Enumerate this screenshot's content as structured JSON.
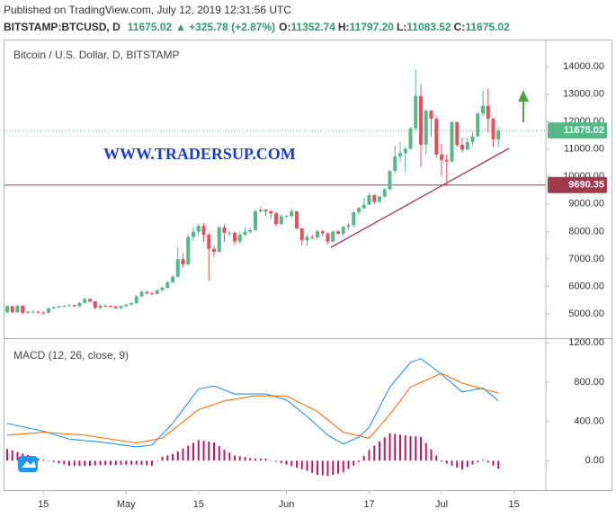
{
  "header": {
    "published": "Published on TradingView.com, July 12, 2019 12:31:56 UTC",
    "symbol": "BITSTAMP:BTCUSD, D",
    "last": "11675.02",
    "arrow": "▲",
    "change": "+325.78 (+2.87%)",
    "open_label": "O:",
    "open": "11352.74",
    "high_label": "H:",
    "high": "11797.20",
    "low_label": "L:",
    "low": "11083.52",
    "close_label": "C:",
    "close": "11675.02"
  },
  "chart_data": {
    "type": "candlestick",
    "title": "Bitcoin / U.S. Dollar, D, BITSTAMP",
    "watermark": "WWW.TRADERSUP.COM",
    "up_color": "#53b987",
    "down_color": "#eb4d5c",
    "categories": [
      null,
      null,
      null,
      null,
      null,
      null,
      null,
      "15",
      null,
      null,
      null,
      null,
      null,
      null,
      null,
      null,
      null,
      null,
      null,
      null,
      null,
      null,
      null,
      "May",
      null,
      null,
      null,
      null,
      null,
      null,
      null,
      null,
      null,
      null,
      null,
      null,
      null,
      "15",
      null,
      null,
      null,
      null,
      null,
      null,
      null,
      null,
      null,
      null,
      null,
      null,
      null,
      null,
      null,
      null,
      "Jun",
      null,
      null,
      null,
      null,
      null,
      null,
      null,
      null,
      null,
      null,
      null,
      null,
      null,
      null,
      null,
      "17",
      null,
      null,
      null,
      null,
      null,
      null,
      null,
      null,
      null,
      null,
      null,
      null,
      null,
      "Jul",
      null,
      null,
      null,
      null,
      null,
      null,
      null,
      null,
      null,
      null,
      null,
      null,
      null,
      "15"
    ],
    "candles": [
      [
        5050,
        5330,
        5020,
        5280
      ],
      [
        5280,
        5290,
        5020,
        5060
      ],
      [
        5060,
        5330,
        5040,
        5300
      ],
      [
        5300,
        5310,
        4980,
        5040
      ],
      [
        5040,
        5110,
        5010,
        5070
      ],
      [
        5070,
        5120,
        5040,
        5080
      ],
      [
        5080,
        5110,
        5020,
        5050
      ],
      [
        5050,
        5090,
        4990,
        5040
      ],
      [
        5040,
        5230,
        5020,
        5200
      ],
      [
        5200,
        5280,
        5180,
        5240
      ],
      [
        5240,
        5310,
        5210,
        5280
      ],
      [
        5280,
        5330,
        5250,
        5290
      ],
      [
        5290,
        5350,
        5260,
        5320
      ],
      [
        5320,
        5340,
        5240,
        5280
      ],
      [
        5280,
        5440,
        5260,
        5400
      ],
      [
        5400,
        5600,
        5380,
        5540
      ],
      [
        5540,
        5560,
        5400,
        5460
      ],
      [
        5460,
        5470,
        5150,
        5220
      ],
      [
        5220,
        5340,
        5180,
        5300
      ],
      [
        5300,
        5330,
        5260,
        5290
      ],
      [
        5290,
        5310,
        5230,
        5270
      ],
      [
        5270,
        5290,
        5170,
        5210
      ],
      [
        5210,
        5310,
        5180,
        5280
      ],
      [
        5280,
        5370,
        5260,
        5340
      ],
      [
        5340,
        5420,
        5320,
        5390
      ],
      [
        5390,
        5680,
        5370,
        5640
      ],
      [
        5640,
        5860,
        5610,
        5800
      ],
      [
        5800,
        5840,
        5700,
        5750
      ],
      [
        5750,
        5790,
        5680,
        5730
      ],
      [
        5730,
        5890,
        5700,
        5860
      ],
      [
        5860,
        5990,
        5830,
        5950
      ],
      [
        5950,
        6190,
        5920,
        6150
      ],
      [
        6150,
        6430,
        6120,
        6350
      ],
      [
        6350,
        7420,
        6330,
        6990
      ],
      [
        6990,
        7220,
        6680,
        6800
      ],
      [
        6800,
        7900,
        6780,
        7800
      ],
      [
        7800,
        8160,
        7650,
        7990
      ],
      [
        7990,
        8280,
        7830,
        8200
      ],
      [
        8200,
        8300,
        7620,
        7880
      ],
      [
        7880,
        7950,
        6200,
        7360
      ],
      [
        7360,
        7480,
        7070,
        7260
      ],
      [
        7260,
        8200,
        7250,
        8150
      ],
      [
        8150,
        8260,
        7620,
        7950
      ],
      [
        7950,
        8040,
        7820,
        7950
      ],
      [
        7950,
        8000,
        7500,
        7630
      ],
      [
        7630,
        7980,
        7540,
        7880
      ],
      [
        7880,
        8150,
        7830,
        7990
      ],
      [
        7990,
        8120,
        7930,
        8050
      ],
      [
        8050,
        8800,
        8030,
        8730
      ],
      [
        8730,
        8910,
        8680,
        8800
      ],
      [
        8800,
        8820,
        8570,
        8740
      ],
      [
        8740,
        8770,
        8450,
        8660
      ],
      [
        8660,
        8720,
        8170,
        8270
      ],
      [
        8270,
        8620,
        8240,
        8550
      ],
      [
        8550,
        8600,
        8500,
        8560
      ],
      [
        8560,
        8840,
        8480,
        8730
      ],
      [
        8730,
        8750,
        8060,
        8110
      ],
      [
        8110,
        8120,
        7490,
        7680
      ],
      [
        7680,
        7880,
        7480,
        7800
      ],
      [
        7800,
        7880,
        7720,
        7780
      ],
      [
        7780,
        8070,
        7700,
        8000
      ],
      [
        8000,
        8060,
        7840,
        7930
      ],
      [
        7930,
        7960,
        7540,
        7630
      ],
      [
        7630,
        8040,
        7600,
        8000
      ],
      [
        8000,
        8070,
        7880,
        7920
      ],
      [
        7920,
        8190,
        7810,
        8170
      ],
      [
        8170,
        8310,
        8050,
        8230
      ],
      [
        8230,
        8750,
        8140,
        8700
      ],
      [
        8700,
        8890,
        8620,
        8850
      ],
      [
        8850,
        9220,
        8800,
        8970
      ],
      [
        8970,
        9390,
        8970,
        9320
      ],
      [
        9320,
        9350,
        8990,
        9080
      ],
      [
        9080,
        9310,
        9030,
        9270
      ],
      [
        9270,
        9580,
        9220,
        9530
      ],
      [
        9530,
        10230,
        9510,
        10200
      ],
      [
        10200,
        11120,
        10100,
        10730
      ],
      [
        10730,
        11250,
        10530,
        10850
      ],
      [
        10850,
        11080,
        10160,
        11010
      ],
      [
        11010,
        11790,
        10980,
        11750
      ],
      [
        11750,
        13900,
        11680,
        12930
      ],
      [
        12930,
        13360,
        10350,
        11160
      ],
      [
        11160,
        12440,
        10800,
        12400
      ],
      [
        12400,
        12400,
        11460,
        12100
      ],
      [
        12100,
        12180,
        10700,
        10800
      ],
      [
        10800,
        11200,
        10000,
        10600
      ],
      [
        10600,
        10810,
        9650,
        10550
      ],
      [
        10550,
        12000,
        10520,
        11980
      ],
      [
        11980,
        12000,
        11080,
        11150
      ],
      [
        11150,
        11400,
        10870,
        10980
      ],
      [
        10980,
        11420,
        10960,
        11250
      ],
      [
        11250,
        11630,
        11140,
        11460
      ],
      [
        11460,
        12340,
        11440,
        12290
      ],
      [
        12290,
        13130,
        12180,
        12570
      ],
      [
        12570,
        13200,
        11600,
        12100
      ],
      [
        12100,
        12150,
        11070,
        11350
      ],
      [
        11350,
        11797.2,
        11083.52,
        11675
      ],
      null,
      null,
      null
    ],
    "ylim": [
      4150,
      14950
    ],
    "yticks": [
      {
        "value": 5000,
        "label": "5000.00"
      },
      {
        "value": 6000,
        "label": "6000.00"
      },
      {
        "value": 7000,
        "label": "7000.00"
      },
      {
        "value": 8000,
        "label": "8000.00"
      },
      {
        "value": 9000,
        "label": "9000.00"
      },
      {
        "value": 10000,
        "label": "10000.00"
      },
      {
        "value": 11000,
        "label": "11000.00"
      },
      {
        "value": 12000,
        "label": "12000.00"
      },
      {
        "value": 13000,
        "label": "13000.00"
      },
      {
        "value": 14000,
        "label": "14000.00"
      }
    ],
    "last_price": 11675.02,
    "horizontal_line": 9690.35,
    "horizontal_line_color": "#a0394a",
    "macd": {
      "title": "MACD (12, 26, close, 9)",
      "ylim": [
        -300,
        1230
      ],
      "yticks": [
        {
          "value": 0,
          "label": "0.00"
        },
        {
          "value": 400,
          "label": "400.00"
        },
        {
          "value": 800,
          "label": "800.00"
        },
        {
          "value": 1200,
          "label": "1200.00"
        }
      ],
      "series": [
        {
          "name": "MACD",
          "color": "#2196f3",
          "values": [
            380,
            369,
            357,
            346,
            334,
            323,
            311,
            300,
            284,
            268,
            252,
            236,
            220,
            215,
            210,
            205,
            200,
            195,
            190,
            183,
            176,
            169,
            162,
            155,
            148,
            140,
            147,
            153,
            160,
            215,
            270,
            325,
            380,
            450,
            520,
            590,
            660,
            730,
            740,
            750,
            760,
            740,
            720,
            700,
            680,
            680,
            680,
            680,
            680,
            680,
            680,
            665,
            650,
            635,
            620,
            578,
            535,
            493,
            450,
            403,
            355,
            308,
            260,
            230,
            200,
            170,
            193,
            217,
            240,
            290,
            340,
            443,
            545,
            648,
            750,
            813,
            875,
            938,
            1000,
            1020,
            1040,
            1000,
            960,
            920,
            880,
            835,
            790,
            745,
            700,
            710,
            720,
            730,
            740,
            697,
            653,
            610,
            null,
            null,
            null
          ]
        },
        {
          "name": "Signal",
          "color": "#ff6d00",
          "values": [
            260,
            264,
            269,
            273,
            277,
            281,
            286,
            290,
            286,
            283,
            279,
            275,
            271,
            268,
            264,
            260,
            252,
            244,
            236,
            228,
            220,
            212,
            204,
            196,
            188,
            180,
            190,
            200,
            210,
            220,
            230,
            271,
            313,
            354,
            396,
            437,
            479,
            520,
            538,
            556,
            574,
            592,
            610,
            618,
            627,
            635,
            643,
            652,
            660,
            660,
            660,
            660,
            660,
            660,
            660,
            633,
            607,
            580,
            553,
            527,
            500,
            458,
            416,
            374,
            332,
            290,
            278,
            266,
            254,
            242,
            230,
            290,
            350,
            410,
            470,
            540,
            610,
            680,
            750,
            773,
            797,
            820,
            843,
            867,
            890,
            865,
            840,
            815,
            790,
            775,
            760,
            745,
            730,
            717,
            703,
            690,
            null,
            null,
            null
          ]
        },
        {
          "name": "Histogram",
          "color": "#c2185b",
          "values": [
            120,
            105,
            88,
            73,
            57,
            42,
            25,
            10,
            -2,
            -15,
            -27,
            -39,
            -51,
            -53,
            -54,
            -55,
            -52,
            -49,
            -46,
            -45,
            -44,
            -43,
            -42,
            -41,
            -40,
            -40,
            -43,
            -47,
            -50,
            -5,
            40,
            54,
            67,
            96,
            124,
            153,
            181,
            210,
            202,
            194,
            186,
            148,
            110,
            82,
            53,
            45,
            37,
            28,
            20,
            20,
            20,
            5,
            -10,
            -25,
            -40,
            -55,
            -72,
            -87,
            -103,
            -124,
            -145,
            -150,
            -156,
            -144,
            -132,
            -120,
            -85,
            -49,
            -14,
            48,
            110,
            153,
            195,
            238,
            280,
            273,
            265,
            258,
            250,
            247,
            243,
            180,
            117,
            53,
            -10,
            -30,
            -50,
            -70,
            -90,
            -65,
            -40,
            -15,
            10,
            -20,
            -50,
            -80,
            null,
            null,
            null
          ]
        }
      ]
    }
  }
}
